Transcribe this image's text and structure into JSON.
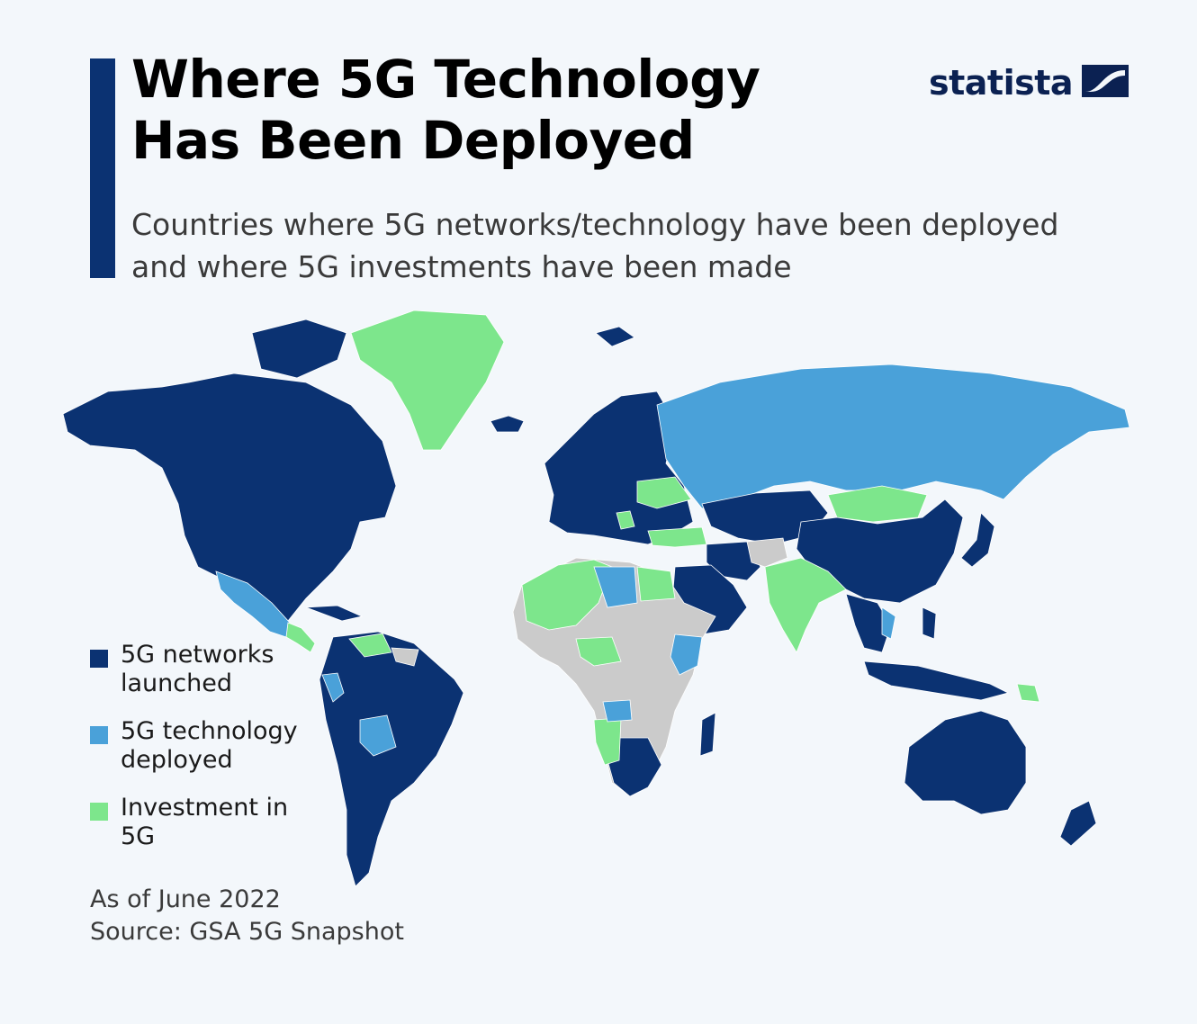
{
  "header": {
    "title": "Where 5G Technology Has Been Deployed",
    "subtitle": "Countries where 5G networks/technology have been deployed and where 5G investments have been made"
  },
  "brand": {
    "name": "statista",
    "icon": "statista-logo-icon",
    "color": "#0b2152"
  },
  "colors": {
    "launched": "#0b3272",
    "deployed": "#4aa1d9",
    "investment": "#7de68c",
    "no_data": "#cbcbcb",
    "background": "#f3f7fb",
    "accent": "#0b3272"
  },
  "legend": [
    {
      "label": "5G networks launched",
      "category": "launched"
    },
    {
      "label": "5G technology deployed",
      "category": "deployed"
    },
    {
      "label": "Investment in 5G",
      "category": "investment"
    }
  ],
  "footnote": {
    "date": "As of June 2022",
    "source": "Source: GSA 5G Snapshot"
  }
}
